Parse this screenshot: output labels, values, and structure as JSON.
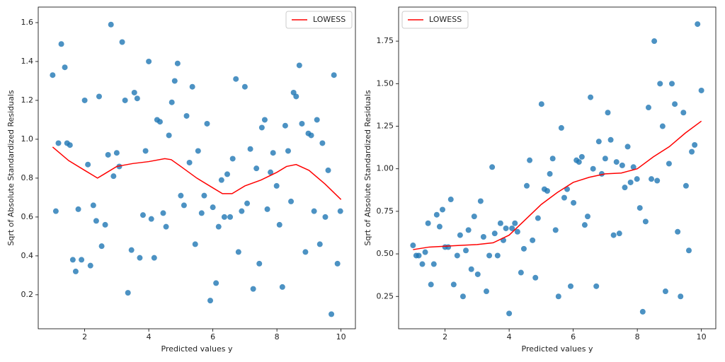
{
  "chart_data": [
    {
      "type": "scatter",
      "xlabel": "Predicted values y",
      "ylabel": "Sqrt of Absolute Standardized Residuals",
      "color": "#1f77b4",
      "legend": "upper right",
      "xlim": [
        0.55,
        10.45
      ],
      "ylim": [
        0.025,
        1.68
      ],
      "xticks": [
        2,
        4,
        6,
        8,
        10
      ],
      "yticks": [
        0.2,
        0.4,
        0.6,
        0.8,
        {
          "value": 1,
          "label": "1.0"
        },
        1.2,
        1.4,
        1.6
      ],
      "x": [
        1.0,
        1.1,
        1.18,
        1.27,
        1.38,
        1.45,
        1.54,
        1.63,
        1.72,
        1.8,
        1.9,
        2.0,
        2.1,
        2.18,
        2.27,
        2.36,
        2.45,
        2.53,
        2.64,
        2.73,
        2.82,
        2.9,
        3.0,
        3.08,
        3.17,
        3.26,
        3.35,
        3.46,
        3.55,
        3.64,
        3.72,
        3.82,
        3.9,
        4.0,
        4.08,
        4.17,
        4.26,
        4.35,
        4.45,
        4.54,
        4.63,
        4.72,
        4.81,
        4.9,
        5.0,
        5.1,
        5.18,
        5.27,
        5.36,
        5.45,
        5.54,
        5.65,
        5.73,
        5.82,
        5.92,
        6.0,
        6.1,
        6.18,
        6.27,
        6.36,
        6.45,
        6.54,
        6.62,
        6.72,
        6.8,
        6.9,
        7.0,
        7.07,
        7.17,
        7.26,
        7.36,
        7.45,
        7.53,
        7.62,
        7.7,
        7.8,
        7.88,
        7.99,
        8.08,
        8.17,
        8.26,
        8.35,
        8.44,
        8.52,
        8.6,
        8.7,
        8.78,
        8.89,
        8.98,
        9.07,
        9.16,
        9.25,
        9.34,
        9.42,
        9.51,
        9.6,
        9.7,
        9.78,
        9.89,
        9.98
      ],
      "values": [
        1.33,
        0.63,
        0.98,
        1.49,
        1.37,
        0.98,
        0.97,
        0.38,
        0.32,
        0.64,
        0.38,
        1.2,
        0.87,
        0.35,
        0.66,
        0.58,
        1.22,
        0.45,
        0.56,
        0.92,
        1.59,
        0.81,
        0.93,
        0.86,
        1.5,
        1.2,
        0.21,
        0.43,
        1.24,
        1.21,
        0.39,
        0.61,
        0.94,
        1.4,
        0.59,
        0.39,
        1.1,
        1.09,
        0.62,
        0.55,
        1.02,
        1.19,
        1.3,
        1.39,
        0.71,
        0.66,
        1.12,
        0.88,
        1.27,
        0.46,
        0.94,
        0.62,
        0.71,
        1.08,
        0.17,
        0.65,
        0.26,
        0.55,
        0.79,
        0.6,
        0.82,
        0.6,
        0.9,
        1.31,
        0.42,
        0.63,
        1.27,
        0.67,
        0.95,
        0.23,
        0.85,
        0.36,
        1.06,
        1.1,
        0.64,
        0.83,
        0.93,
        0.76,
        0.56,
        0.24,
        1.07,
        0.94,
        0.68,
        1.24,
        1.22,
        1.38,
        1.08,
        0.42,
        1.03,
        1.02,
        0.63,
        1.1,
        0.46,
        0.98,
        0.6,
        0.84,
        0.1,
        1.33,
        0.36,
        0.63
      ],
      "series": [
        {
          "name": "LOWESS",
          "color": "#ff0000",
          "x": [
            1.0,
            1.5,
            2.0,
            2.4,
            2.6,
            3.0,
            3.5,
            4.0,
            4.5,
            4.7,
            5.0,
            5.5,
            6.0,
            6.3,
            6.6,
            7.0,
            7.5,
            8.0,
            8.3,
            8.6,
            9.0,
            9.5,
            10.0
          ],
          "values": [
            0.96,
            0.89,
            0.84,
            0.8,
            0.82,
            0.86,
            0.875,
            0.885,
            0.9,
            0.895,
            0.86,
            0.8,
            0.75,
            0.72,
            0.72,
            0.76,
            0.79,
            0.83,
            0.86,
            0.87,
            0.84,
            0.77,
            0.69
          ]
        }
      ]
    },
    {
      "type": "scatter",
      "xlabel": "Predicted values y",
      "ylabel": "Sqrt of Absolute Standardized Residuals",
      "color": "#1f77b4",
      "legend": "upper left",
      "xlim": [
        0.55,
        10.45
      ],
      "ylim": [
        0.06,
        1.95
      ],
      "xticks": [
        2,
        4,
        6,
        8,
        10
      ],
      "yticks": [
        0.25,
        {
          "value": 0.5,
          "label": "0.50"
        },
        0.75,
        {
          "value": 1,
          "label": "1.00"
        },
        1.25,
        {
          "value": 1.5,
          "label": "1.50"
        },
        1.75
      ],
      "x": [
        1.0,
        1.1,
        1.18,
        1.29,
        1.38,
        1.47,
        1.56,
        1.65,
        1.74,
        1.83,
        1.92,
        2.0,
        2.1,
        2.18,
        2.27,
        2.38,
        2.47,
        2.56,
        2.65,
        2.73,
        2.82,
        2.91,
        3.02,
        3.11,
        3.2,
        3.29,
        3.38,
        3.47,
        3.55,
        3.64,
        3.73,
        3.82,
        3.9,
        4.0,
        4.09,
        4.18,
        4.26,
        4.37,
        4.46,
        4.55,
        4.64,
        4.73,
        4.82,
        4.9,
        5.01,
        5.1,
        5.19,
        5.27,
        5.36,
        5.45,
        5.54,
        5.63,
        5.72,
        5.81,
        5.92,
        6.01,
        6.1,
        6.18,
        6.27,
        6.36,
        6.45,
        6.54,
        6.62,
        6.72,
        6.8,
        6.89,
        7.0,
        7.08,
        7.17,
        7.26,
        7.35,
        7.44,
        7.53,
        7.61,
        7.7,
        7.79,
        7.88,
        7.99,
        8.08,
        8.17,
        8.26,
        8.35,
        8.44,
        8.53,
        8.62,
        8.71,
        8.79,
        8.88,
        8.99,
        9.08,
        9.17,
        9.26,
        9.35,
        9.44,
        9.52,
        9.61,
        9.7,
        9.79,
        9.88,
        10.0
      ],
      "values": [
        0.55,
        0.49,
        0.49,
        0.44,
        0.51,
        0.68,
        0.32,
        0.44,
        0.73,
        0.66,
        0.76,
        0.54,
        0.54,
        0.82,
        0.32,
        0.49,
        0.61,
        0.25,
        0.52,
        0.64,
        0.41,
        0.72,
        0.38,
        0.81,
        0.6,
        0.28,
        0.49,
        1.01,
        0.62,
        0.49,
        0.68,
        0.58,
        0.65,
        0.15,
        0.65,
        0.68,
        0.63,
        0.39,
        0.53,
        0.9,
        1.05,
        0.58,
        0.36,
        0.71,
        1.38,
        0.88,
        0.87,
        0.97,
        1.06,
        0.64,
        0.25,
        1.24,
        0.83,
        0.88,
        0.31,
        0.8,
        1.05,
        1.04,
        1.07,
        0.67,
        0.72,
        1.42,
        1.0,
        0.31,
        1.16,
        0.97,
        1.06,
        1.33,
        1.17,
        0.61,
        1.04,
        0.62,
        1.02,
        0.89,
        1.13,
        0.92,
        1.01,
        0.94,
        0.77,
        0.16,
        0.69,
        1.36,
        0.94,
        1.75,
        0.93,
        1.5,
        1.25,
        0.28,
        1.03,
        1.5,
        1.38,
        0.63,
        0.25,
        1.33,
        0.9,
        0.52,
        1.1,
        1.14,
        1.85,
        1.46
      ],
      "series": [
        {
          "name": "LOWESS",
          "color": "#ff0000",
          "x": [
            1.0,
            1.5,
            2.0,
            2.5,
            3.0,
            3.5,
            4.0,
            4.5,
            5.0,
            5.5,
            6.0,
            6.5,
            7.0,
            7.5,
            8.0,
            8.5,
            9.0,
            9.5,
            10.0
          ],
          "values": [
            0.525,
            0.54,
            0.545,
            0.55,
            0.555,
            0.565,
            0.61,
            0.7,
            0.79,
            0.86,
            0.92,
            0.95,
            0.97,
            0.975,
            1.0,
            1.07,
            1.13,
            1.21,
            1.28
          ]
        }
      ]
    }
  ]
}
